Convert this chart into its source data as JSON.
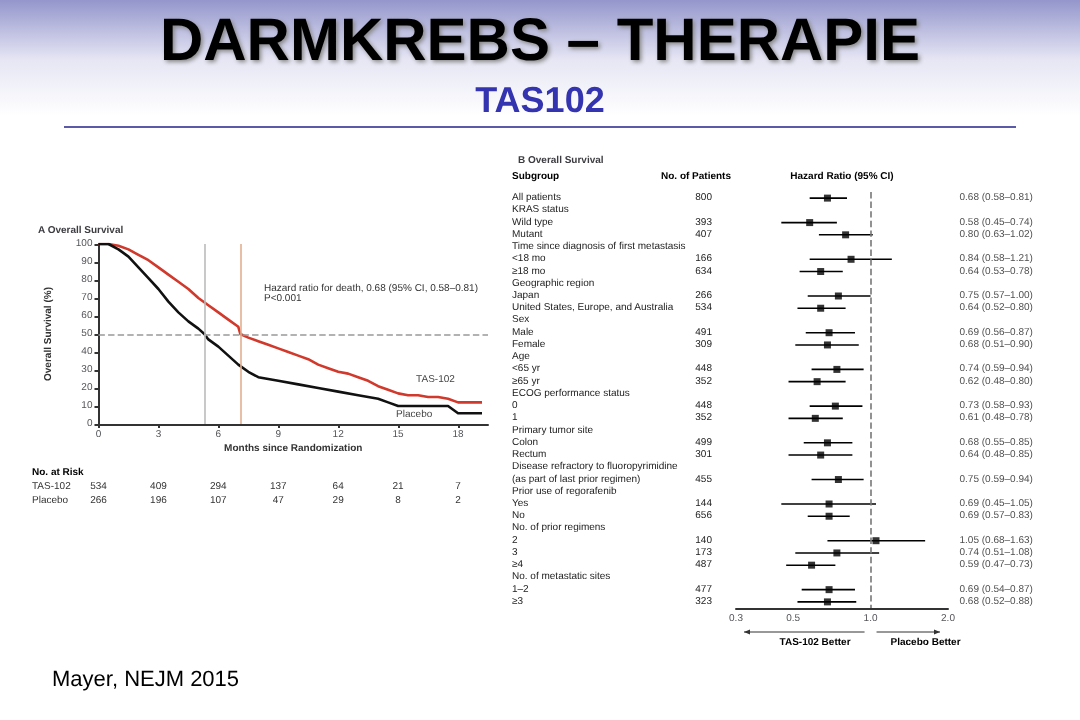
{
  "chart_data": [
    {
      "type": "other",
      "title": "DARMKREBS – THERAPIE",
      "subtitle": "TAS102",
      "annotations": [
        "Mayer, NEJM 2015"
      ]
    },
    {
      "type": "line",
      "title": "A Overall Survival",
      "xlabel": "Months since Randomization",
      "ylabel": "Overall Survival (%)",
      "xlim": [
        0,
        19.5
      ],
      "xticks": [
        0,
        3,
        6,
        9,
        12,
        15,
        18
      ],
      "ylim": [
        0,
        100
      ],
      "yticks": [
        0,
        10,
        20,
        30,
        40,
        50,
        60,
        70,
        80,
        90,
        100
      ],
      "marker": "none",
      "line_style": "solid",
      "series": [
        {
          "name": "TAS-102",
          "color": "#d0392b",
          "x": [
            0,
            0.5,
            1,
            1.5,
            2,
            2.5,
            3,
            3.5,
            4,
            4.5,
            5,
            5.5,
            6,
            6.5,
            7,
            7.1,
            7.5,
            8,
            8.5,
            9,
            9.5,
            10,
            10.5,
            11,
            11.5,
            12,
            12.5,
            13,
            13.5,
            14,
            14.5,
            15,
            15.5,
            16,
            16.5,
            17,
            17.5,
            18,
            18.5,
            19.2
          ],
          "values": [
            100,
            100,
            99,
            97,
            94,
            91,
            87,
            83,
            79,
            75,
            70,
            66,
            62,
            58,
            54,
            50,
            48,
            46,
            44,
            42,
            40,
            38,
            36,
            33,
            31,
            29,
            28,
            26,
            24,
            21,
            19,
            17,
            16,
            16,
            15,
            15,
            14,
            12,
            12,
            12
          ]
        },
        {
          "name": "Placebo",
          "color": "#111111",
          "x": [
            0,
            0.5,
            1,
            1.5,
            2,
            2.5,
            3,
            3.5,
            4,
            4.5,
            5,
            5.3,
            5.5,
            6,
            6.5,
            7,
            7.5,
            8,
            9,
            10,
            11,
            12,
            13,
            14,
            14.5,
            15,
            16,
            17,
            17.5,
            18,
            18.5,
            19.2
          ],
          "values": [
            100,
            100,
            97,
            93,
            87,
            81,
            75,
            68,
            62,
            57,
            53,
            50,
            47,
            43,
            38,
            33,
            29,
            26,
            24,
            22,
            20,
            18,
            16,
            14,
            12,
            10,
            10,
            10,
            10,
            6,
            6,
            6
          ]
        }
      ],
      "ref_lines": [
        {
          "axis": "y",
          "value": 50,
          "line_style": "dashed",
          "color": "#999999"
        },
        {
          "axis": "x",
          "value": 5.3,
          "line_style": "solid",
          "color": "#bbbbbb"
        },
        {
          "axis": "x",
          "value": 7.1,
          "line_style": "solid",
          "color": "#e0b090"
        }
      ],
      "annotations": [
        "Hazard ratio for death, 0.68 (95% CI, 0.58–0.81)\nP<0.001",
        "No. at Risk",
        "TAS-102 534 409 294 137 64 21 7",
        "Placebo 266 196 107 47 29 8 2"
      ]
    },
    {
      "type": "scatter",
      "orientation": "horizontal",
      "title": "B Overall Survival",
      "ylabel": "Subgroup",
      "y2label": "No. of Patients",
      "xlabel": "Hazard Ratio (95% CI)",
      "color": "#000000",
      "marker": "square",
      "log": "x",
      "xlim": [
        0.3,
        2
      ],
      "xticks": [
        0.3,
        0.5,
        {
          "value": 1,
          "label": "1.0"
        },
        {
          "value": 2,
          "label": "2.0"
        }
      ],
      "categories": [
        "All patients",
        "KRAS status",
        "Wild type",
        "Mutant",
        "Time since diagnosis of first metastasis",
        "<18 mo",
        "≥18 mo",
        "Geographic region",
        "Japan",
        "United States, Europe, and Australia",
        "Sex",
        "Male",
        "Female",
        "Age",
        "<65 yr",
        "≥65 yr",
        "ECOG performance status",
        "0",
        "1",
        "Primary tumor site",
        "Colon",
        "Rectum",
        "Disease refractory to fluoropyrimidine",
        "(as part of last prior regimen)",
        "Prior use of regorafenib",
        "Yes",
        "No",
        "No. of prior regimens",
        "2",
        "3",
        "≥4",
        "No. of metastatic sites",
        "1–2",
        "≥3"
      ],
      "y2_categories": [
        "800",
        null,
        "393",
        "407",
        null,
        "166",
        "634",
        null,
        "266",
        "534",
        null,
        "491",
        "309",
        null,
        "448",
        "352",
        null,
        "448",
        "352",
        null,
        "499",
        "301",
        null,
        "455",
        null,
        "144",
        "656",
        null,
        "140",
        "173",
        "487",
        null,
        "477",
        "323"
      ],
      "values": [
        0.68,
        null,
        0.58,
        0.8,
        null,
        0.84,
        0.64,
        null,
        0.75,
        0.64,
        null,
        0.69,
        0.68,
        null,
        0.74,
        0.62,
        null,
        0.73,
        0.61,
        null,
        0.68,
        0.64,
        null,
        0.75,
        null,
        0.69,
        0.69,
        null,
        1.05,
        0.74,
        0.59,
        null,
        0.69,
        0.68
      ],
      "errors": [
        [
          0.58,
          0.81
        ],
        null,
        [
          0.45,
          0.74
        ],
        [
          0.63,
          1.02
        ],
        null,
        [
          0.58,
          1.21
        ],
        [
          0.53,
          0.78
        ],
        null,
        [
          0.57,
          1.0
        ],
        [
          0.52,
          0.8
        ],
        null,
        [
          0.56,
          0.87
        ],
        [
          0.51,
          0.9
        ],
        null,
        [
          0.59,
          0.94
        ],
        [
          0.48,
          0.8
        ],
        null,
        [
          0.58,
          0.93
        ],
        [
          0.48,
          0.78
        ],
        null,
        [
          0.55,
          0.85
        ],
        [
          0.48,
          0.85
        ],
        null,
        [
          0.59,
          0.94
        ],
        null,
        [
          0.45,
          1.05
        ],
        [
          0.57,
          0.83
        ],
        null,
        [
          0.68,
          1.63
        ],
        [
          0.51,
          1.08
        ],
        [
          0.47,
          0.73
        ],
        null,
        [
          0.54,
          0.87
        ],
        [
          0.52,
          0.88
        ]
      ],
      "value_labels": [
        "0.68 (0.58–0.81)",
        null,
        "0.58 (0.45–0.74)",
        "0.80 (0.63–1.02)",
        null,
        "0.84 (0.58–1.21)",
        "0.64 (0.53–0.78)",
        null,
        "0.75 (0.57–1.00)",
        "0.64 (0.52–0.80)",
        null,
        "0.69 (0.56–0.87)",
        "0.68 (0.51–0.90)",
        null,
        "0.74 (0.59–0.94)",
        "0.62 (0.48–0.80)",
        null,
        "0.73 (0.58–0.93)",
        "0.61 (0.48–0.78)",
        null,
        "0.68 (0.55–0.85)",
        "0.64 (0.48–0.85)",
        null,
        "0.75 (0.59–0.94)",
        null,
        "0.69 (0.45–1.05)",
        "0.69 (0.57–0.83)",
        null,
        "1.05 (0.68–1.63)",
        "0.74 (0.51–1.08)",
        "0.59 (0.47–0.73)",
        null,
        "0.69 (0.54–0.87)",
        "0.68 (0.52–0.88)"
      ],
      "ref_lines": [
        {
          "axis": "x",
          "value": 1,
          "line_style": "dashed",
          "color": "#777777"
        }
      ],
      "annotations": [
        "TAS-102 Better",
        "Placebo Better"
      ]
    }
  ]
}
